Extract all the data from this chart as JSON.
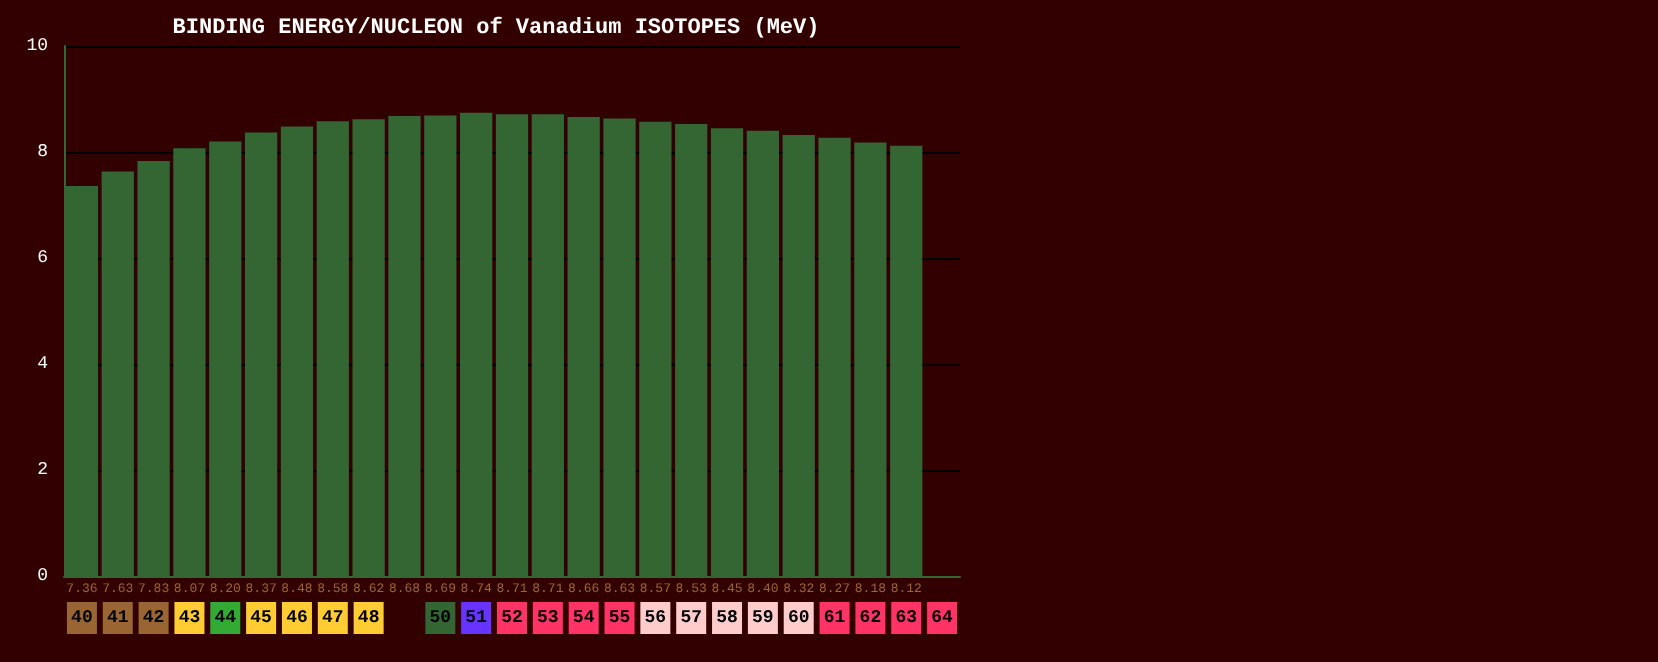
{
  "chart_data": {
    "type": "bar",
    "title": "BINDING ENERGY/NUCLEON of Vanadium ISOTOPES (MeV)",
    "categories": [
      "40",
      "41",
      "42",
      "43",
      "44",
      "45",
      "46",
      "47",
      "48",
      null,
      "50",
      "51",
      "52",
      "53",
      "54",
      "55",
      "56",
      "57",
      "58",
      "59",
      "60",
      "61",
      "62",
      "63",
      "64"
    ],
    "values": [
      7.36,
      7.63,
      7.83,
      8.07,
      8.2,
      8.37,
      8.48,
      8.58,
      8.62,
      8.68,
      8.69,
      8.74,
      8.71,
      8.71,
      8.66,
      8.63,
      8.57,
      8.53,
      8.45,
      8.4,
      8.32,
      8.27,
      8.18,
      8.12,
      null
    ],
    "value_labels": [
      "7.36",
      "7.63",
      "7.83",
      "8.07",
      "8.20",
      "8.37",
      "8.48",
      "8.58",
      "8.62",
      "8.68",
      "8.69",
      "8.74",
      "8.71",
      "8.71",
      "8.66",
      "8.63",
      "8.57",
      "8.53",
      "8.45",
      "8.40",
      "8.32",
      "8.27",
      "8.18",
      "8.12",
      null
    ],
    "color": "#336633",
    "ylim": [
      0,
      10
    ],
    "yticks": [
      0,
      2,
      4,
      6,
      8,
      10
    ],
    "grid": "y"
  }
}
